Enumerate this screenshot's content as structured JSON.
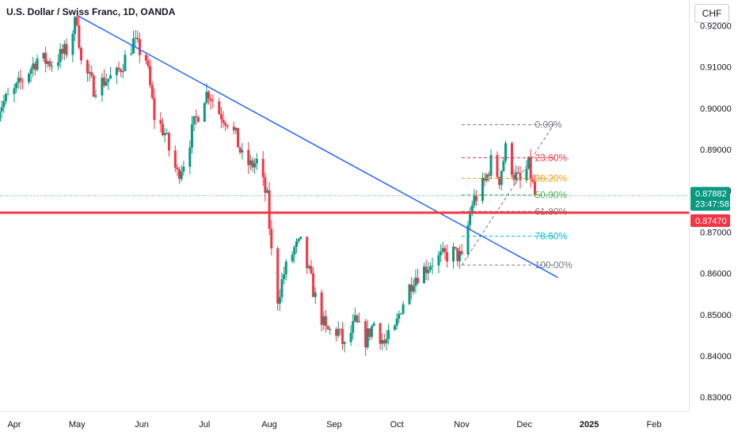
{
  "header": {
    "title": "U.S. Dollar / Swiss Franc, 1D, OANDA",
    "currency_button": "CHF"
  },
  "chart_data": {
    "type": "candlestick",
    "title": "U.S. Dollar / Swiss Franc, 1D, OANDA",
    "xlabel": "",
    "ylabel": "",
    "ylim": [
      0.8266,
      0.9262
    ],
    "y_ticks": [
      "0.92000",
      "0.91000",
      "0.90000",
      "0.89000",
      "0.88000",
      "0.87000",
      "0.86000",
      "0.85000",
      "0.84000",
      "0.83000"
    ],
    "y_tick_values": [
      0.92,
      0.91,
      0.9,
      0.89,
      0.88,
      0.87,
      0.86,
      0.85,
      0.84,
      0.83
    ],
    "x_ticks": [
      "Apr",
      "May",
      "Jun",
      "Jul",
      "Aug",
      "Sep",
      "Oct",
      "Nov",
      "Dec",
      "2025",
      "Feb"
    ],
    "x_tick_dates": [
      "2024-04-01",
      "2024-05-01",
      "2024-06-01",
      "2024-07-01",
      "2024-08-01",
      "2024-09-01",
      "2024-10-01",
      "2024-11-01",
      "2024-12-01",
      "2025-01-01",
      "2025-02-01"
    ],
    "grid": false,
    "colors": {
      "up": "#089981",
      "down": "#f23645",
      "trendline": "#2962ff",
      "support": "#f23645",
      "current_price": "#089981"
    },
    "price_anchors": [
      [
        "2024-03-22",
        0.899
      ],
      [
        "2024-04-01",
        0.904
      ],
      [
        "2024-04-12",
        0.912
      ],
      [
        "2024-04-19",
        0.911
      ],
      [
        "2024-04-26",
        0.914
      ],
      [
        "2024-05-01",
        0.922
      ],
      [
        "2024-05-03",
        0.911
      ],
      [
        "2024-05-09",
        0.905
      ],
      [
        "2024-05-15",
        0.907
      ],
      [
        "2024-05-20",
        0.908
      ],
      [
        "2024-05-28",
        0.916
      ],
      [
        "2024-06-03",
        0.912
      ],
      [
        "2024-06-07",
        0.898
      ],
      [
        "2024-06-12",
        0.894
      ],
      [
        "2024-06-14",
        0.89
      ],
      [
        "2024-06-18",
        0.884
      ],
      [
        "2024-06-21",
        0.887
      ],
      [
        "2024-06-26",
        0.896
      ],
      [
        "2024-07-01",
        0.903
      ],
      [
        "2024-07-03",
        0.904
      ],
      [
        "2024-07-08",
        0.899
      ],
      [
        "2024-07-12",
        0.897
      ],
      [
        "2024-07-16",
        0.893
      ],
      [
        "2024-07-19",
        0.888
      ],
      [
        "2024-07-23",
        0.886
      ],
      [
        "2024-07-26",
        0.887
      ],
      [
        "2024-07-31",
        0.878
      ],
      [
        "2024-08-02",
        0.865
      ],
      [
        "2024-08-05",
        0.854
      ],
      [
        "2024-08-08",
        0.86
      ],
      [
        "2024-08-13",
        0.866
      ],
      [
        "2024-08-16",
        0.867
      ],
      [
        "2024-08-20",
        0.86
      ],
      [
        "2024-08-23",
        0.854
      ],
      [
        "2024-08-28",
        0.846
      ],
      [
        "2024-09-03",
        0.846
      ],
      [
        "2024-09-06",
        0.842
      ],
      [
        "2024-09-11",
        0.848
      ],
      [
        "2024-09-16",
        0.844
      ],
      [
        "2024-09-20",
        0.848
      ],
      [
        "2024-09-25",
        0.843
      ],
      [
        "2024-09-30",
        0.846
      ],
      [
        "2024-10-03",
        0.852
      ],
      [
        "2024-10-09",
        0.859
      ],
      [
        "2024-10-14",
        0.861
      ],
      [
        "2024-10-18",
        0.863
      ],
      [
        "2024-10-23",
        0.864
      ],
      [
        "2024-10-28",
        0.865
      ],
      [
        "2024-10-31",
        0.864
      ],
      [
        "2024-11-01",
        0.863
      ],
      [
        "2024-11-06",
        0.877
      ],
      [
        "2024-11-12",
        0.882
      ],
      [
        "2024-11-15",
        0.887
      ],
      [
        "2024-11-19",
        0.883
      ],
      [
        "2024-11-22",
        0.89
      ],
      [
        "2024-11-26",
        0.884
      ],
      [
        "2024-11-29",
        0.882
      ],
      [
        "2024-12-03",
        0.886
      ],
      [
        "2024-12-06",
        0.8788
      ]
    ],
    "trendline": {
      "from": [
        "2024-05-01",
        0.9225
      ],
      "to": [
        "2024-12-17",
        0.859
      ]
    },
    "support_line": {
      "value": 0.8747,
      "label": "0.87470"
    },
    "current_price": {
      "value": 0.87882,
      "label": "0.87882",
      "countdown": "23:47:58"
    },
    "fib_projection": {
      "from": [
        "2024-11-01",
        0.862
      ],
      "to": [
        "2024-12-15",
        0.896
      ],
      "x_start": "2024-11-01",
      "x_end": "2024-12-15",
      "label_x": "2024-12-06",
      "levels": [
        {
          "label": "0.00%",
          "value": 0.896,
          "color": "#787b86"
        },
        {
          "label": "23.60%",
          "value": 0.888,
          "color": "#f23645"
        },
        {
          "label": "38.20%",
          "value": 0.883,
          "color": "#ff9800"
        },
        {
          "label": "50.00%",
          "value": 0.879,
          "color": "#4caf50"
        },
        {
          "label": "61.80%",
          "value": 0.875,
          "color": "#787b86"
        },
        {
          "label": "78.60%",
          "value": 0.869,
          "color": "#00bcd4"
        },
        {
          "label": "100.00%",
          "value": 0.862,
          "color": "#787b86"
        }
      ]
    }
  }
}
